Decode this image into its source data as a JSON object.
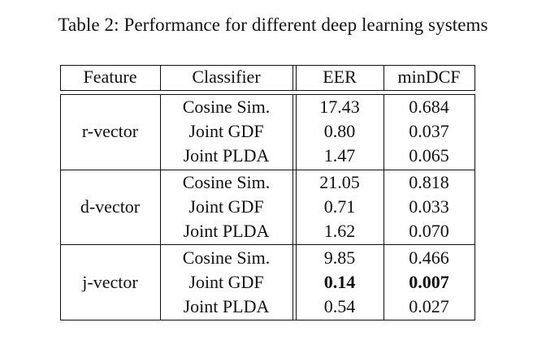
{
  "caption": "Table 2: Performance for different deep learning systems",
  "headers": [
    "Feature",
    "Classifier",
    "EER",
    "minDCF"
  ],
  "groups": [
    {
      "feature": "r-vector",
      "rows": [
        {
          "classifier": "Cosine Sim.",
          "eer": "17.43",
          "mindcf": "0.684"
        },
        {
          "classifier": "Joint GDF",
          "eer": "0.80",
          "mindcf": "0.037"
        },
        {
          "classifier": "Joint PLDA",
          "eer": "1.47",
          "mindcf": "0.065"
        }
      ]
    },
    {
      "feature": "d-vector",
      "rows": [
        {
          "classifier": "Cosine Sim.",
          "eer": "21.05",
          "mindcf": "0.818"
        },
        {
          "classifier": "Joint GDF",
          "eer": "0.71",
          "mindcf": "0.033"
        },
        {
          "classifier": "Joint PLDA",
          "eer": "1.62",
          "mindcf": "0.070"
        }
      ]
    },
    {
      "feature": "j-vector",
      "rows": [
        {
          "classifier": "Cosine Sim.",
          "eer": "9.85",
          "mindcf": "0.466"
        },
        {
          "classifier": "Joint GDF",
          "eer": "0.14",
          "mindcf": "0.007"
        },
        {
          "classifier": "Joint PLDA",
          "eer": "0.54",
          "mindcf": "0.027"
        }
      ]
    }
  ]
}
